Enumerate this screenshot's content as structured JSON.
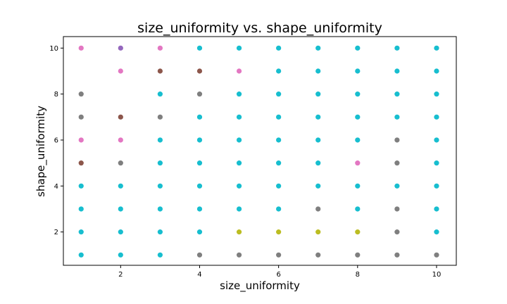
{
  "chart_data": {
    "type": "scatter",
    "title": "size_uniformity vs. shape_uniformity",
    "xlabel": "size_uniformity",
    "ylabel": "shape_uniformity",
    "xlim": [
      0.55,
      10.5
    ],
    "ylim": [
      0.55,
      10.5
    ],
    "xticks": [
      "2",
      "4",
      "6",
      "8",
      "10"
    ],
    "yticks": [
      "2",
      "4",
      "6",
      "8",
      "10"
    ],
    "grid": false,
    "colors": {
      "cyan": "#17becf",
      "gray": "#7f7f7f",
      "pink": "#e377c2",
      "brown": "#8c564b",
      "purple": "#9467bd",
      "olive": "#bcbd22"
    },
    "points": [
      {
        "x": 1,
        "y": 1,
        "c": "cyan"
      },
      {
        "x": 1,
        "y": 2,
        "c": "cyan"
      },
      {
        "x": 1,
        "y": 3,
        "c": "cyan"
      },
      {
        "x": 1,
        "y": 4,
        "c": "cyan"
      },
      {
        "x": 1,
        "y": 5,
        "c": "brown"
      },
      {
        "x": 1,
        "y": 6,
        "c": "pink"
      },
      {
        "x": 1,
        "y": 7,
        "c": "gray"
      },
      {
        "x": 1,
        "y": 8,
        "c": "gray"
      },
      {
        "x": 1,
        "y": 10,
        "c": "pink"
      },
      {
        "x": 2,
        "y": 1,
        "c": "cyan"
      },
      {
        "x": 2,
        "y": 2,
        "c": "cyan"
      },
      {
        "x": 2,
        "y": 3,
        "c": "cyan"
      },
      {
        "x": 2,
        "y": 4,
        "c": "cyan"
      },
      {
        "x": 2,
        "y": 5,
        "c": "gray"
      },
      {
        "x": 2,
        "y": 6,
        "c": "pink"
      },
      {
        "x": 2,
        "y": 7,
        "c": "brown"
      },
      {
        "x": 2,
        "y": 9,
        "c": "pink"
      },
      {
        "x": 2,
        "y": 10,
        "c": "purple"
      },
      {
        "x": 3,
        "y": 1,
        "c": "cyan"
      },
      {
        "x": 3,
        "y": 2,
        "c": "cyan"
      },
      {
        "x": 3,
        "y": 3,
        "c": "cyan"
      },
      {
        "x": 3,
        "y": 4,
        "c": "cyan"
      },
      {
        "x": 3,
        "y": 5,
        "c": "cyan"
      },
      {
        "x": 3,
        "y": 6,
        "c": "cyan"
      },
      {
        "x": 3,
        "y": 7,
        "c": "gray"
      },
      {
        "x": 3,
        "y": 8,
        "c": "cyan"
      },
      {
        "x": 3,
        "y": 9,
        "c": "brown"
      },
      {
        "x": 3,
        "y": 10,
        "c": "pink"
      },
      {
        "x": 4,
        "y": 1,
        "c": "gray"
      },
      {
        "x": 4,
        "y": 2,
        "c": "cyan"
      },
      {
        "x": 4,
        "y": 3,
        "c": "cyan"
      },
      {
        "x": 4,
        "y": 4,
        "c": "cyan"
      },
      {
        "x": 4,
        "y": 5,
        "c": "cyan"
      },
      {
        "x": 4,
        "y": 6,
        "c": "cyan"
      },
      {
        "x": 4,
        "y": 7,
        "c": "cyan"
      },
      {
        "x": 4,
        "y": 8,
        "c": "gray"
      },
      {
        "x": 4,
        "y": 9,
        "c": "brown"
      },
      {
        "x": 4,
        "y": 10,
        "c": "cyan"
      },
      {
        "x": 5,
        "y": 1,
        "c": "gray"
      },
      {
        "x": 5,
        "y": 2,
        "c": "olive"
      },
      {
        "x": 5,
        "y": 3,
        "c": "cyan"
      },
      {
        "x": 5,
        "y": 4,
        "c": "cyan"
      },
      {
        "x": 5,
        "y": 5,
        "c": "cyan"
      },
      {
        "x": 5,
        "y": 6,
        "c": "cyan"
      },
      {
        "x": 5,
        "y": 7,
        "c": "cyan"
      },
      {
        "x": 5,
        "y": 8,
        "c": "cyan"
      },
      {
        "x": 5,
        "y": 9,
        "c": "pink"
      },
      {
        "x": 5,
        "y": 10,
        "c": "cyan"
      },
      {
        "x": 6,
        "y": 1,
        "c": "gray"
      },
      {
        "x": 6,
        "y": 2,
        "c": "olive"
      },
      {
        "x": 6,
        "y": 3,
        "c": "cyan"
      },
      {
        "x": 6,
        "y": 4,
        "c": "cyan"
      },
      {
        "x": 6,
        "y": 5,
        "c": "cyan"
      },
      {
        "x": 6,
        "y": 6,
        "c": "cyan"
      },
      {
        "x": 6,
        "y": 7,
        "c": "cyan"
      },
      {
        "x": 6,
        "y": 8,
        "c": "cyan"
      },
      {
        "x": 6,
        "y": 9,
        "c": "cyan"
      },
      {
        "x": 6,
        "y": 10,
        "c": "cyan"
      },
      {
        "x": 7,
        "y": 1,
        "c": "gray"
      },
      {
        "x": 7,
        "y": 2,
        "c": "olive"
      },
      {
        "x": 7,
        "y": 3,
        "c": "gray"
      },
      {
        "x": 7,
        "y": 4,
        "c": "cyan"
      },
      {
        "x": 7,
        "y": 5,
        "c": "cyan"
      },
      {
        "x": 7,
        "y": 6,
        "c": "cyan"
      },
      {
        "x": 7,
        "y": 7,
        "c": "cyan"
      },
      {
        "x": 7,
        "y": 8,
        "c": "cyan"
      },
      {
        "x": 7,
        "y": 9,
        "c": "cyan"
      },
      {
        "x": 7,
        "y": 10,
        "c": "cyan"
      },
      {
        "x": 8,
        "y": 1,
        "c": "gray"
      },
      {
        "x": 8,
        "y": 2,
        "c": "olive"
      },
      {
        "x": 8,
        "y": 3,
        "c": "cyan"
      },
      {
        "x": 8,
        "y": 4,
        "c": "cyan"
      },
      {
        "x": 8,
        "y": 5,
        "c": "pink"
      },
      {
        "x": 8,
        "y": 6,
        "c": "cyan"
      },
      {
        "x": 8,
        "y": 7,
        "c": "cyan"
      },
      {
        "x": 8,
        "y": 8,
        "c": "cyan"
      },
      {
        "x": 8,
        "y": 9,
        "c": "cyan"
      },
      {
        "x": 8,
        "y": 10,
        "c": "cyan"
      },
      {
        "x": 9,
        "y": 1,
        "c": "gray"
      },
      {
        "x": 9,
        "y": 2,
        "c": "gray"
      },
      {
        "x": 9,
        "y": 3,
        "c": "gray"
      },
      {
        "x": 9,
        "y": 4,
        "c": "cyan"
      },
      {
        "x": 9,
        "y": 5,
        "c": "gray"
      },
      {
        "x": 9,
        "y": 6,
        "c": "gray"
      },
      {
        "x": 9,
        "y": 7,
        "c": "cyan"
      },
      {
        "x": 9,
        "y": 8,
        "c": "cyan"
      },
      {
        "x": 9,
        "y": 9,
        "c": "cyan"
      },
      {
        "x": 9,
        "y": 10,
        "c": "cyan"
      },
      {
        "x": 10,
        "y": 1,
        "c": "gray"
      },
      {
        "x": 10,
        "y": 2,
        "c": "cyan"
      },
      {
        "x": 10,
        "y": 3,
        "c": "cyan"
      },
      {
        "x": 10,
        "y": 4,
        "c": "cyan"
      },
      {
        "x": 10,
        "y": 5,
        "c": "cyan"
      },
      {
        "x": 10,
        "y": 6,
        "c": "cyan"
      },
      {
        "x": 10,
        "y": 7,
        "c": "cyan"
      },
      {
        "x": 10,
        "y": 8,
        "c": "cyan"
      },
      {
        "x": 10,
        "y": 9,
        "c": "cyan"
      },
      {
        "x": 10,
        "y": 10,
        "c": "cyan"
      }
    ]
  }
}
